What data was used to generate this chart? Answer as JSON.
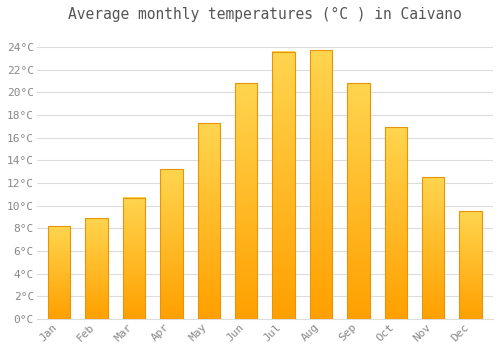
{
  "title": "Average monthly temperatures (°C ) in Caivano",
  "months": [
    "Jan",
    "Feb",
    "Mar",
    "Apr",
    "May",
    "Jun",
    "Jul",
    "Aug",
    "Sep",
    "Oct",
    "Nov",
    "Dec"
  ],
  "values": [
    8.2,
    8.9,
    10.7,
    13.2,
    17.3,
    20.8,
    23.6,
    23.7,
    20.8,
    16.9,
    12.5,
    9.5
  ],
  "bar_color_top": "#FFD54F",
  "bar_color_bottom": "#FFA000",
  "bar_edge_color": "#E6950A",
  "background_color": "#FFFFFF",
  "grid_color": "#DDDDDD",
  "ytick_labels": [
    "0°C",
    "2°C",
    "4°C",
    "6°C",
    "8°C",
    "10°C",
    "12°C",
    "14°C",
    "16°C",
    "18°C",
    "20°C",
    "22°C",
    "24°C"
  ],
  "ytick_values": [
    0,
    2,
    4,
    6,
    8,
    10,
    12,
    14,
    16,
    18,
    20,
    22,
    24
  ],
  "ylim": [
    0,
    25.5
  ],
  "title_fontsize": 10.5,
  "tick_fontsize": 8,
  "tick_color": "#888888",
  "figsize": [
    5.0,
    3.5
  ],
  "dpi": 100
}
